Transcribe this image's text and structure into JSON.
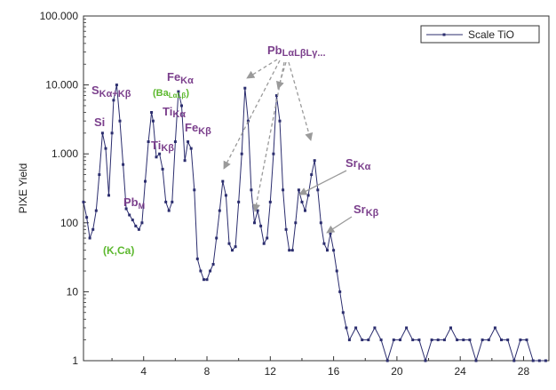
{
  "chart_data": {
    "type": "line",
    "ylabel": "PIXE Yield",
    "xlabel": "",
    "yscale": "log",
    "xlim": [
      0.2,
      29.6
    ],
    "ylim": [
      1,
      100000
    ],
    "x_ticks": [
      4,
      8,
      12,
      16,
      20,
      24,
      28
    ],
    "x_tick_labels": [
      "4",
      "8",
      "12",
      "16",
      "20",
      "24",
      "28"
    ],
    "y_ticks": [
      1,
      10,
      100,
      1000,
      10000,
      100000
    ],
    "y_tick_labels": [
      "1",
      "10",
      "100",
      "1.000",
      "10.000",
      "100.000"
    ],
    "grid": false,
    "legend": {
      "placement": "top-right",
      "entries": [
        "Scale TiO"
      ]
    },
    "colors": {
      "series": "#2b2d6e",
      "annotation_purple": "#7b3f8c",
      "annotation_green": "#5cb82e",
      "arrow": "#9a9a9a"
    },
    "series": [
      {
        "name": "Scale TiO",
        "x": [
          0.2,
          0.4,
          0.6,
          0.8,
          1.0,
          1.2,
          1.4,
          1.6,
          1.8,
          2.0,
          2.1,
          2.3,
          2.5,
          2.7,
          2.9,
          3.1,
          3.3,
          3.5,
          3.7,
          3.9,
          4.1,
          4.3,
          4.5,
          4.6,
          4.8,
          5.0,
          5.2,
          5.4,
          5.6,
          5.8,
          6.0,
          6.2,
          6.4,
          6.6,
          6.8,
          7.0,
          7.2,
          7.4,
          7.6,
          7.8,
          8.0,
          8.2,
          8.4,
          8.6,
          8.8,
          9.0,
          9.2,
          9.4,
          9.6,
          9.8,
          10.0,
          10.2,
          10.4,
          10.6,
          10.8,
          11.0,
          11.2,
          11.4,
          11.6,
          11.8,
          12.0,
          12.2,
          12.4,
          12.6,
          12.8,
          13.0,
          13.2,
          13.4,
          13.6,
          13.8,
          14.0,
          14.2,
          14.4,
          14.6,
          14.8,
          15.0,
          15.2,
          15.4,
          15.6,
          15.8,
          16.0,
          16.2,
          16.4,
          16.6,
          16.8,
          17.0,
          17.4,
          17.8,
          18.2,
          18.6,
          19.0,
          19.4,
          19.8,
          20.2,
          20.6,
          21.0,
          21.4,
          21.8,
          22.2,
          22.6,
          23.0,
          23.4,
          23.8,
          24.2,
          24.6,
          25.0,
          25.4,
          25.8,
          26.2,
          26.6,
          27.0,
          27.4,
          27.8,
          28.2,
          28.6,
          29.0,
          29.4
        ],
        "y": [
          200,
          120,
          60,
          80,
          150,
          500,
          2000,
          1200,
          250,
          2000,
          6000,
          10000,
          3000,
          700,
          160,
          130,
          110,
          90,
          80,
          100,
          400,
          1500,
          4000,
          3000,
          900,
          1000,
          600,
          200,
          150,
          200,
          1500,
          8000,
          5000,
          800,
          1500,
          1200,
          300,
          30,
          20,
          15,
          15,
          20,
          25,
          60,
          150,
          400,
          250,
          50,
          40,
          45,
          200,
          1000,
          9000,
          3000,
          300,
          100,
          150,
          90,
          50,
          60,
          200,
          1000,
          7000,
          3000,
          300,
          80,
          40,
          40,
          100,
          300,
          200,
          150,
          250,
          500,
          800,
          300,
          100,
          50,
          40,
          70,
          40,
          20,
          10,
          5,
          3,
          2,
          3,
          2,
          2,
          3,
          2,
          1,
          2,
          2,
          3,
          2,
          2,
          1,
          2,
          2,
          2,
          3,
          2,
          2,
          2,
          1,
          2,
          2,
          3,
          2,
          2,
          1,
          2,
          2,
          1,
          1,
          1
        ]
      }
    ],
    "annotations": [
      {
        "id": "s",
        "text": "SKα+Kβ"
      },
      {
        "id": "si",
        "text": "Si"
      },
      {
        "id": "ba",
        "text": "(BaLαLβ)"
      },
      {
        "id": "ti",
        "text": "TiKα"
      },
      {
        "id": "tib",
        "text": "TiKβ"
      },
      {
        "id": "fe",
        "text": "FeKα"
      },
      {
        "id": "feb",
        "text": "FeKβ"
      },
      {
        "id": "pbm",
        "text": "PbM"
      },
      {
        "id": "kca",
        "text": "(K,Ca)"
      },
      {
        "id": "pb",
        "text": "PbLαLβLγ..."
      },
      {
        "id": "sr",
        "text": "SrKα"
      },
      {
        "id": "srb",
        "text": "SrKβ"
      }
    ]
  }
}
